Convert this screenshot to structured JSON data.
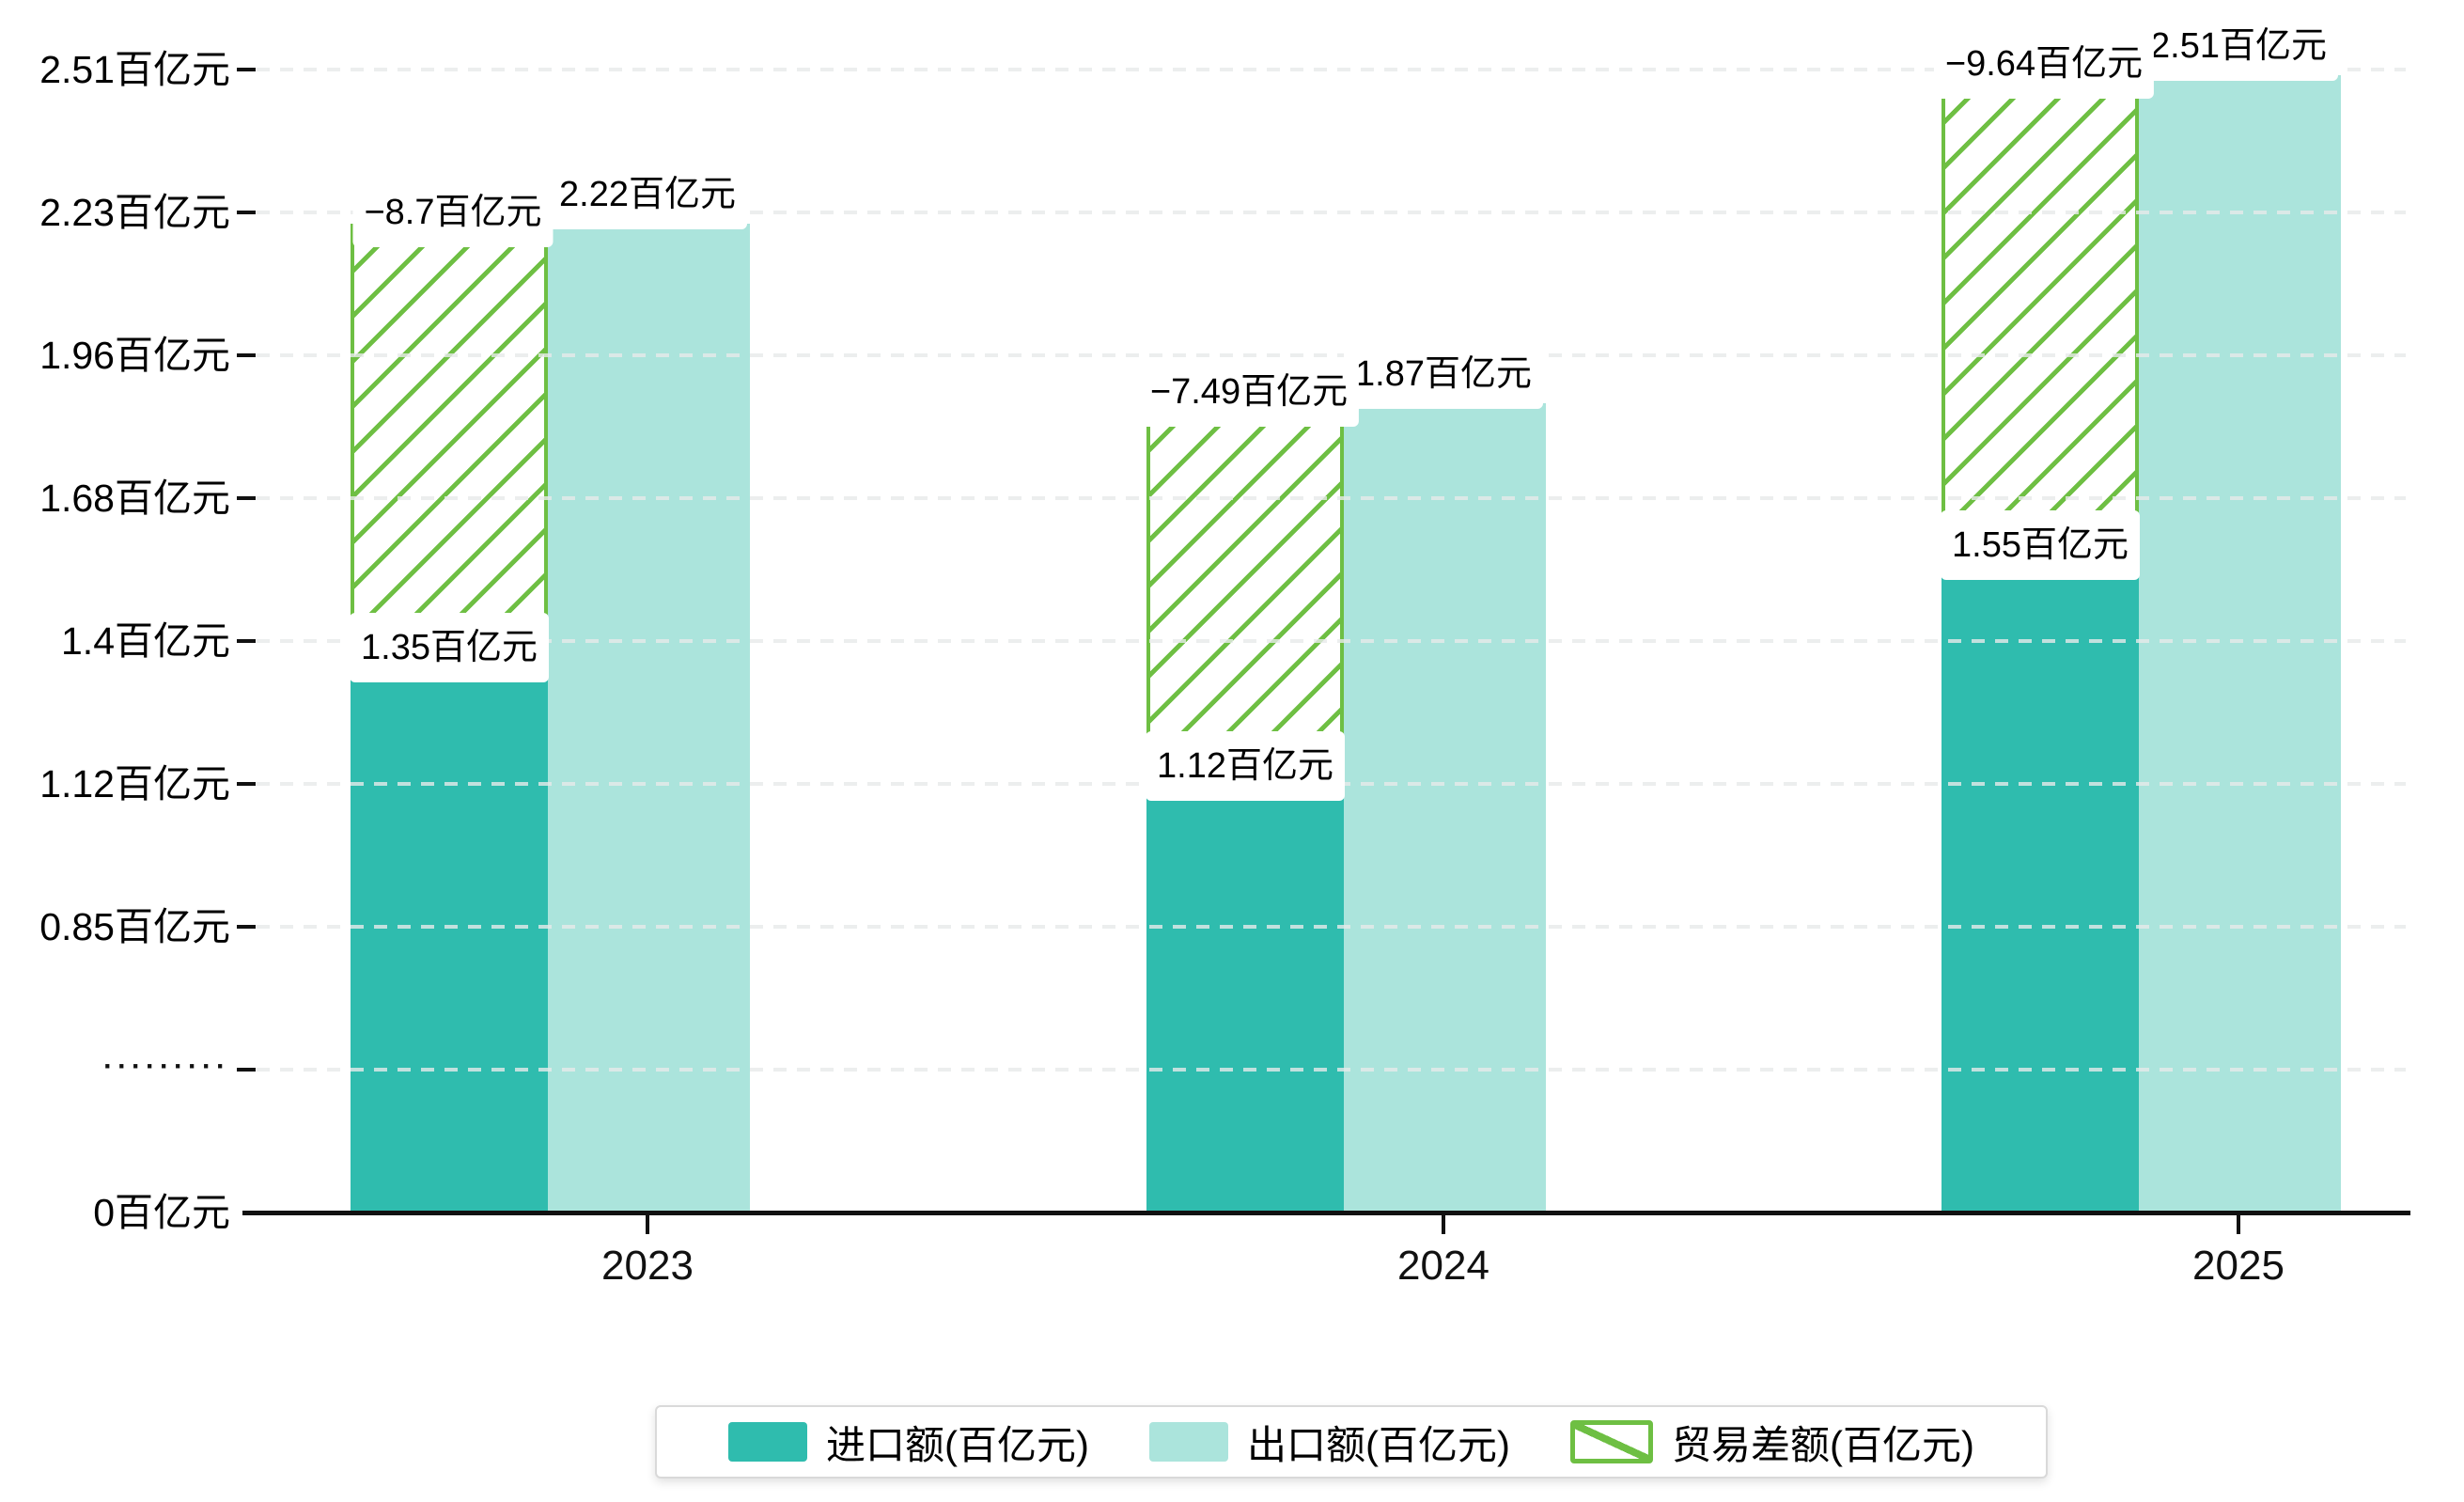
{
  "chart_data": {
    "type": "bar",
    "title": "",
    "unit": "百亿元",
    "categories": [
      "2023",
      "2024",
      "2025"
    ],
    "series": [
      {
        "name": "进口额(百亿元)",
        "role": "import",
        "values": [
          1.35,
          1.12,
          1.55
        ],
        "data_labels": [
          "1.35百亿元",
          "1.12百亿元",
          "1.55百亿元"
        ],
        "color": "#2fbcae"
      },
      {
        "name": "出口额(百亿元)",
        "role": "export",
        "values": [
          2.22,
          1.87,
          2.51
        ],
        "data_labels": [
          "2.22百亿元",
          "1.87百亿元",
          "2.51百亿元"
        ],
        "color": "#abe4dc"
      },
      {
        "name": "贸易差额(百亿元)",
        "role": "trade-balance",
        "values": [
          -8.7,
          -7.49,
          -9.64
        ],
        "data_labels": [
          "−8.7百亿元",
          "−7.49百亿元",
          "−9.64百亿元"
        ],
        "color": "#6ebf43",
        "pattern": "diagonal-hatch"
      }
    ],
    "y_axis": {
      "tick_labels": [
        "2.51百亿元",
        "2.23百亿元",
        "1.96百亿元",
        "1.68百亿元",
        "1.4百亿元",
        "1.12百亿元",
        "0.85百亿元",
        "·········",
        "0百亿元"
      ],
      "axis_break_row": 7,
      "grid": "dashed",
      "legend_position": "bottom"
    },
    "x_axis": {
      "labels": [
        "2023",
        "2024",
        "2025"
      ]
    },
    "legend": {
      "items": [
        "进口额(百亿元)",
        "出口额(百亿元)",
        "贸易差额(百亿元)"
      ]
    }
  },
  "colors": {
    "import": "#2fbcae",
    "export": "#abe4dc",
    "balance": "#6ebf43",
    "grid": "#e8ebeb",
    "axis": "#111111",
    "label_text": "#000000",
    "background": "#ffffff"
  }
}
